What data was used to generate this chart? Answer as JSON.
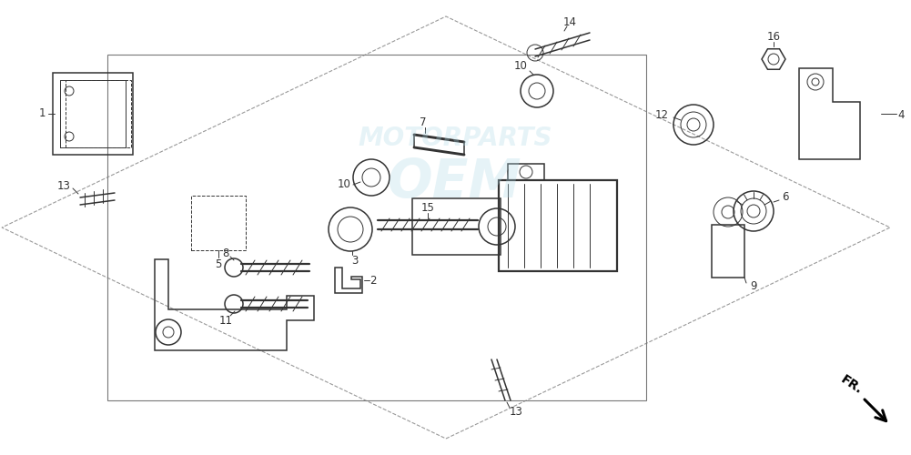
{
  "bg_color": "#ffffff",
  "line_color": "#333333",
  "watermark_color": "#add8e6",
  "fr_label": "FR.",
  "lw_thin": 0.7,
  "lw_med": 1.1,
  "lw_thick": 1.6
}
